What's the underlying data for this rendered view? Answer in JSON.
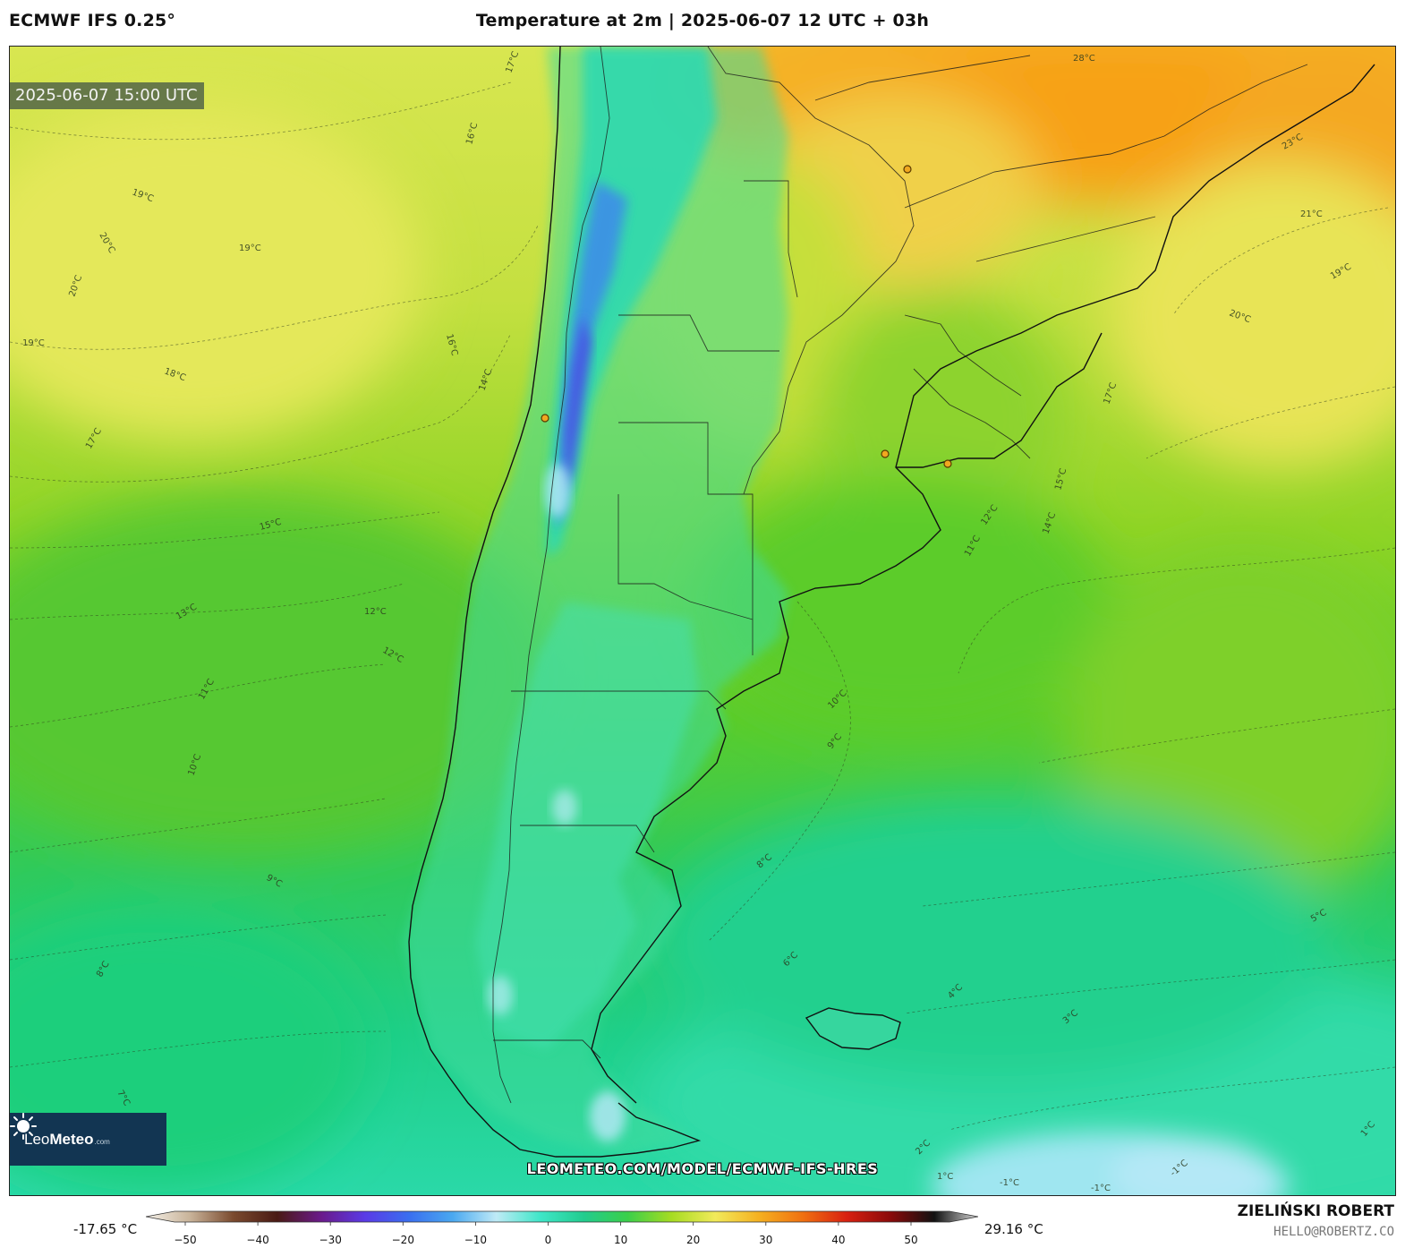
{
  "header": {
    "model": "ECMWF IFS 0.25°",
    "title": "Temperature at 2m | 2025-06-07 12 UTC + 03h"
  },
  "map": {
    "valid_time": "2025-06-07 15:00 UTC",
    "url": "LEOMETEO.COM/MODEL/ECMWF-IFS-HRES",
    "logo": {
      "brand_leo": "Leo",
      "brand_meteo": "Meteo",
      "brand_tld": ".com"
    },
    "contour_labels": [
      "17°C",
      "16°C",
      "19°C",
      "20°C",
      "19°C",
      "20°C",
      "19°C",
      "18°C",
      "17°C",
      "16°C",
      "14°C",
      "15°C",
      "13°C",
      "12°C",
      "12°C",
      "11°C",
      "10°C",
      "9°C",
      "8°C",
      "7°C",
      "28°C",
      "23°C",
      "21°C",
      "19°C",
      "20°C",
      "17°C",
      "15°C",
      "14°C",
      "12°C",
      "11°C",
      "10°C",
      "9°C",
      "8°C",
      "6°C",
      "5°C",
      "4°C",
      "3°C",
      "2°C",
      "1°C",
      "-1°C",
      "-1°C",
      "-1°C",
      "1°C"
    ]
  },
  "colorbar": {
    "min_label": "-17.65 °C",
    "max_label": "29.16 °C",
    "ticks": [
      "−50",
      "−40",
      "−30",
      "−20",
      "−10",
      "0",
      "10",
      "20",
      "30",
      "40",
      "50"
    ],
    "stops": [
      "#f4f0e8",
      "#c9b49a",
      "#7a4a2e",
      "#4a1a14",
      "#6a1a8a",
      "#5a3ae6",
      "#3a6ef0",
      "#4aa8f0",
      "#bfeaf6",
      "#3fe6c8",
      "#22cc8e",
      "#3bcf4a",
      "#a6dc22",
      "#f2ea5a",
      "#f5b020",
      "#f07010",
      "#d82010",
      "#8a0a0a",
      "#111111",
      "#d8d8d8"
    ]
  },
  "credits": {
    "author": "ZIELIŃSKI ROBERT",
    "email": "HELLO@ROBERTZ.CO"
  }
}
